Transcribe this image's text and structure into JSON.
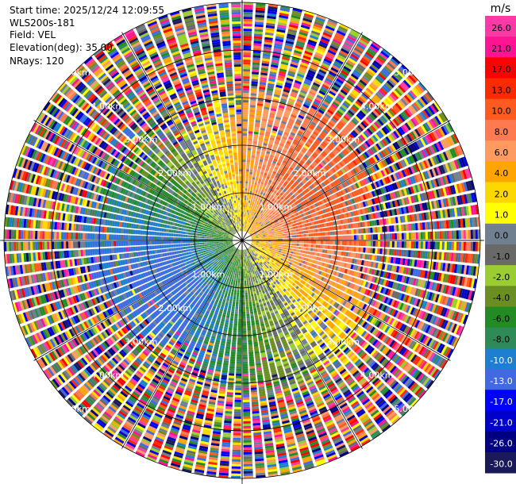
{
  "header": {
    "start_time": "Start time: 2025/12/24 12:09:55",
    "instrument": "WLS200s-181",
    "field": "Field: VEL",
    "elevation": "Elevation(deg): 35.00",
    "nrays": "NRays: 120"
  },
  "chart_data": {
    "type": "heatmap",
    "projection": "polar PPI",
    "n_rays": 120,
    "range_rings_km": [
      1,
      2,
      3,
      4,
      5
    ],
    "ring_labels": [
      "1.00km",
      "2.00km",
      "3.00km",
      "4.00km",
      "5.00km"
    ],
    "grid": true,
    "colorbar": {
      "unit": "m/s",
      "ticks": [
        "26.0",
        "21.0",
        "17.0",
        "13.0",
        "10.0",
        "8.0",
        "6.0",
        "4.0",
        "2.0",
        "1.0",
        "0.0",
        "-1.0",
        "-2.0",
        "-4.0",
        "-6.0",
        "-8.0",
        "-10.0",
        "-13.0",
        "-17.0",
        "-21.0",
        "-26.0",
        "-30.0"
      ],
      "colors": [
        "#ff3aa6",
        "#ff1493",
        "#ff0000",
        "#ff2a00",
        "#ff5a1f",
        "#ff7a50",
        "#ff9a60",
        "#ffa500",
        "#ffd700",
        "#ffff00",
        "#708090",
        "#696969",
        "#9acd32",
        "#6b8e23",
        "#228b22",
        "#2e8b57",
        "#1e7fd0",
        "#4169e1",
        "#0000ff",
        "#0000cd",
        "#000080",
        "#1a1a5a"
      ]
    }
  }
}
